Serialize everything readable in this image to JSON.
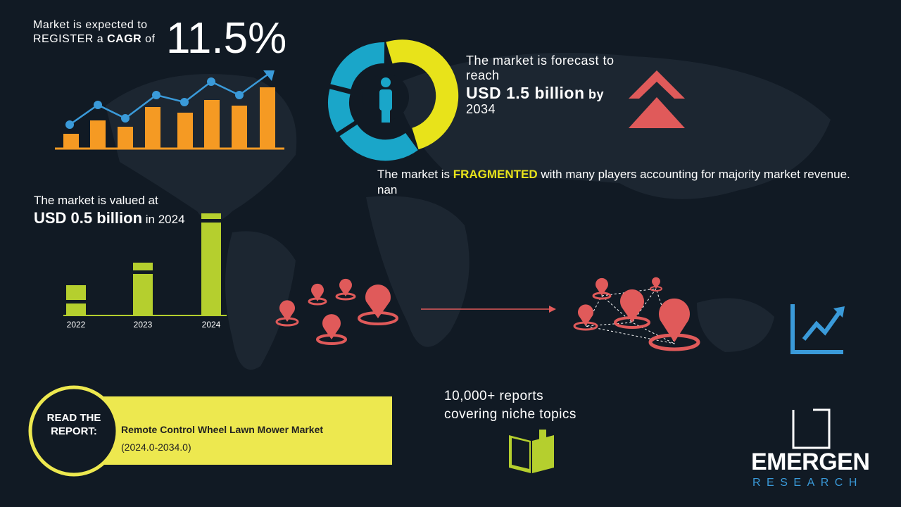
{
  "cagr": {
    "line1": "Market is expected to",
    "line2": "REGISTER a",
    "highlight": "CAGR",
    "suffix": "of",
    "value": "11.5%"
  },
  "forecast": {
    "line1": "The market is forecast to reach",
    "value": "USD 1.5 billion",
    "by": "by",
    "year": "2034"
  },
  "fragmented": {
    "prefix": "The market is",
    "highlight": "FRAGMENTED",
    "rest": "with many players accounting for majority market revenue. nan"
  },
  "valued": {
    "line1": "The market is valued at",
    "value": "USD 0.5 billion",
    "suffix": "in 2024",
    "years": [
      "2022",
      "2023",
      "2024"
    ]
  },
  "report": {
    "button": "READ THE REPORT:",
    "title": "Remote Control Wheel Lawn Mower Market",
    "period": "(2024.0-2034.0)"
  },
  "reports_count": "10,000+ reports covering niche topics",
  "logo": {
    "name": "EMERGEN",
    "sub": "RESEARCH"
  }
}
